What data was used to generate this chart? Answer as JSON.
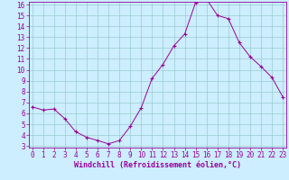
{
  "x": [
    0,
    1,
    2,
    3,
    4,
    5,
    6,
    7,
    8,
    9,
    10,
    11,
    12,
    13,
    14,
    15,
    16,
    17,
    18,
    19,
    20,
    21,
    22,
    23
  ],
  "y": [
    6.6,
    6.3,
    6.4,
    5.5,
    4.3,
    3.8,
    3.5,
    3.2,
    3.5,
    4.8,
    6.5,
    9.2,
    10.5,
    12.2,
    13.3,
    16.2,
    16.5,
    15.0,
    14.7,
    12.5,
    11.2,
    10.3,
    9.3,
    7.5
  ],
  "ylim_min": 3,
  "ylim_max": 16,
  "xlim_min": 0,
  "xlim_max": 23,
  "yticks": [
    3,
    4,
    5,
    6,
    7,
    8,
    9,
    10,
    11,
    12,
    13,
    14,
    15,
    16
  ],
  "xticks": [
    0,
    1,
    2,
    3,
    4,
    5,
    6,
    7,
    8,
    9,
    10,
    11,
    12,
    13,
    14,
    15,
    16,
    17,
    18,
    19,
    20,
    21,
    22,
    23
  ],
  "xlabel": "Windchill (Refroidissement éolien,°C)",
  "line_color": "#990099",
  "marker": "+",
  "bg_color": "#cceeff",
  "grid_color": "#99cccc",
  "tick_fontsize": 5.5,
  "xlabel_fontsize": 6.0,
  "linewidth": 0.7,
  "markersize": 3.5,
  "markeredgewidth": 0.8
}
